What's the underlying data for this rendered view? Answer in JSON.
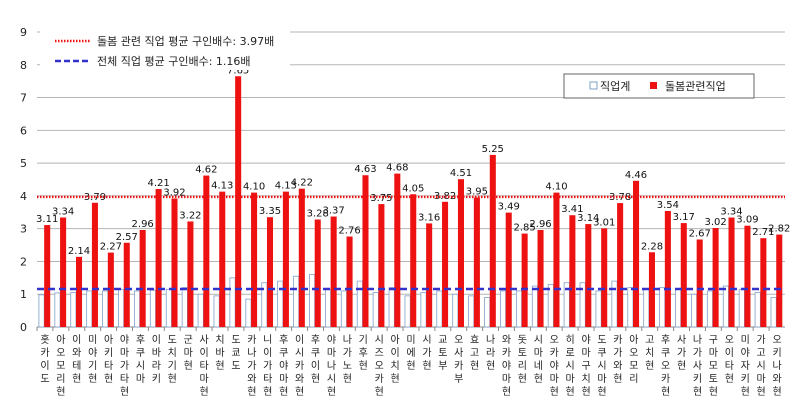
{
  "chart_data": {
    "type": "bar",
    "title": "",
    "xlabel": "",
    "ylabel": "",
    "ylim": [
      0,
      9
    ],
    "yticks": [
      "0",
      "1",
      "2",
      "3",
      "4",
      "5",
      "6",
      "7",
      "8",
      "9"
    ],
    "grid": true,
    "legend_position": "top-right",
    "categories": [
      "홋카이도",
      "아오모리현",
      "이와테현",
      "미야기현",
      "아키타현",
      "야마가타현",
      "후쿠시마",
      "이바라키",
      "도치기현",
      "군마현",
      "사이타마현",
      "치바현",
      "도쿄도",
      "카나가와현",
      "니이가타현",
      "후쿠야마현",
      "이시카와현",
      "후쿠이현",
      "야마나시현",
      "나가노현",
      "기후현",
      "시즈오카현",
      "아이치현",
      "미에현",
      "시가현",
      "교토부",
      "오사카부",
      "효고현",
      "나라현",
      "와카야마현",
      "돗토리현",
      "시마네현",
      "오카야마현",
      "히로시마현",
      "야마구치현",
      "도쿠시마현",
      "카가와현",
      "아오모리",
      "고치현",
      "후쿠오카현",
      "사가현",
      "나가사키현",
      "구마모토현",
      "오이타현",
      "미야자키현",
      "가고시마현",
      "오키나와현"
    ],
    "series": [
      {
        "name": "직업계",
        "color": "#ffffff",
        "stroke": "#7f9fc8",
        "values": [
          0.98,
          1.04,
          1.05,
          1.1,
          1.1,
          1.15,
          1.1,
          1.12,
          1.15,
          1.2,
          1.0,
          0.95,
          1.5,
          0.85,
          1.35,
          1.4,
          1.55,
          1.6,
          1.15,
          1.1,
          1.4,
          1.05,
          1.2,
          0.95,
          1.05,
          1.1,
          1.0,
          0.95,
          0.9,
          1.1,
          1.1,
          1.25,
          1.3,
          1.35,
          1.35,
          1.1,
          1.4,
          1.2,
          1.15,
          1.2,
          1.15,
          1.0,
          1.1,
          1.25,
          1.15,
          1.05,
          0.9
        ]
      },
      {
        "name": "돌봄관련직업",
        "color": "#ee1111",
        "values": [
          3.11,
          3.34,
          2.14,
          3.79,
          2.27,
          2.57,
          2.96,
          4.21,
          3.92,
          3.22,
          4.62,
          4.13,
          7.65,
          4.1,
          3.35,
          4.13,
          4.22,
          3.28,
          3.37,
          2.76,
          4.63,
          3.75,
          4.68,
          4.05,
          3.16,
          3.82,
          4.51,
          3.95,
          5.25,
          3.49,
          2.85,
          2.96,
          4.1,
          3.41,
          3.14,
          3.01,
          3.78,
          4.46,
          2.28,
          3.54,
          3.17,
          2.67,
          3.02,
          3.34,
          3.09,
          2.71,
          2.82
        ],
        "labels": [
          "3.11",
          "3.34",
          "2.14",
          "3.79",
          "2.27",
          "2.57",
          "2.96",
          "4.21",
          "3.92",
          "3.22",
          "4.62",
          "4.13",
          "7.65",
          "4.10",
          "3.35",
          "4.13",
          "4.22",
          "3.28",
          "3.37",
          "2.76",
          "4.63",
          "3.75",
          "4.68",
          "4.05",
          "3.16",
          "3.82",
          "4.51",
          "3.95",
          "5.25",
          "3.49",
          "2.85",
          "2.96",
          "4.10",
          "3.41",
          "3.14",
          "3.01",
          "3.78",
          "4.46",
          "2.28",
          "3.54",
          "3.17",
          "2.67",
          "3.02",
          "3.34",
          "3.09",
          "2.71",
          "2.82"
        ]
      }
    ],
    "reference_lines": [
      {
        "label": "돌봄 관련 직업 평균 구인배수: 3.97배",
        "value": 3.97,
        "color": "#ee1111",
        "style": "dotted"
      },
      {
        "label": "전체 직업 평균 구인배수: 1.16배",
        "value": 1.16,
        "color": "#3333cc",
        "style": "dashed"
      }
    ]
  }
}
